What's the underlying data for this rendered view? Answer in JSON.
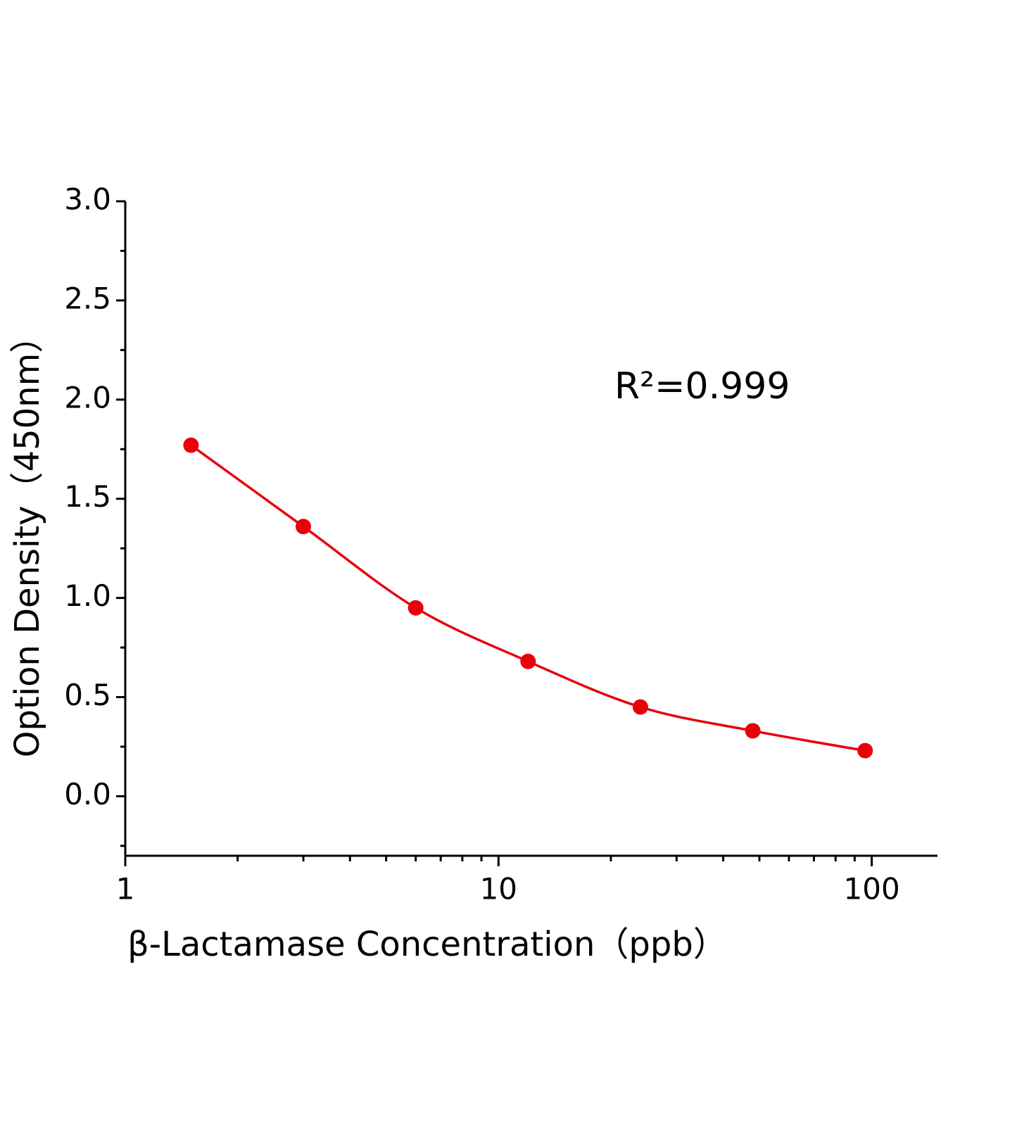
{
  "chart_data": {
    "type": "scatter",
    "x_label": "β-Lactamase Concentration（ppb）",
    "y_label": "Option Density（450nm）",
    "annotation": "R²=0.999",
    "xscale": "log",
    "x": [
      1.5,
      3,
      6,
      12,
      24,
      48,
      96
    ],
    "series": [
      {
        "color": "#e8000b",
        "values": [
          1.77,
          1.36,
          0.95,
          0.68,
          0.45,
          0.33,
          0.23
        ]
      }
    ],
    "xlim": [
      1,
      150
    ],
    "xticks": [
      1,
      10,
      100
    ],
    "xminorticks": [
      2,
      3,
      4,
      5,
      6,
      7,
      8,
      9,
      20,
      30,
      40,
      50,
      60,
      70,
      80,
      90
    ],
    "ylim": [
      -0.3,
      3.0
    ],
    "yticks": [
      {
        "value": 0,
        "label": "0.0"
      },
      {
        "value": 0.5,
        "label": "0.5"
      },
      {
        "value": 1,
        "label": "1.0"
      },
      {
        "value": 1.5,
        "label": "1.5"
      },
      {
        "value": 2,
        "label": "2.0"
      },
      {
        "value": 2.5,
        "label": "2.5"
      },
      {
        "value": 3,
        "label": "3.0"
      }
    ],
    "yminorticks": [
      -0.25,
      0.25,
      0.75,
      1.25,
      1.75,
      2.25,
      2.75
    ],
    "grid": false
  }
}
